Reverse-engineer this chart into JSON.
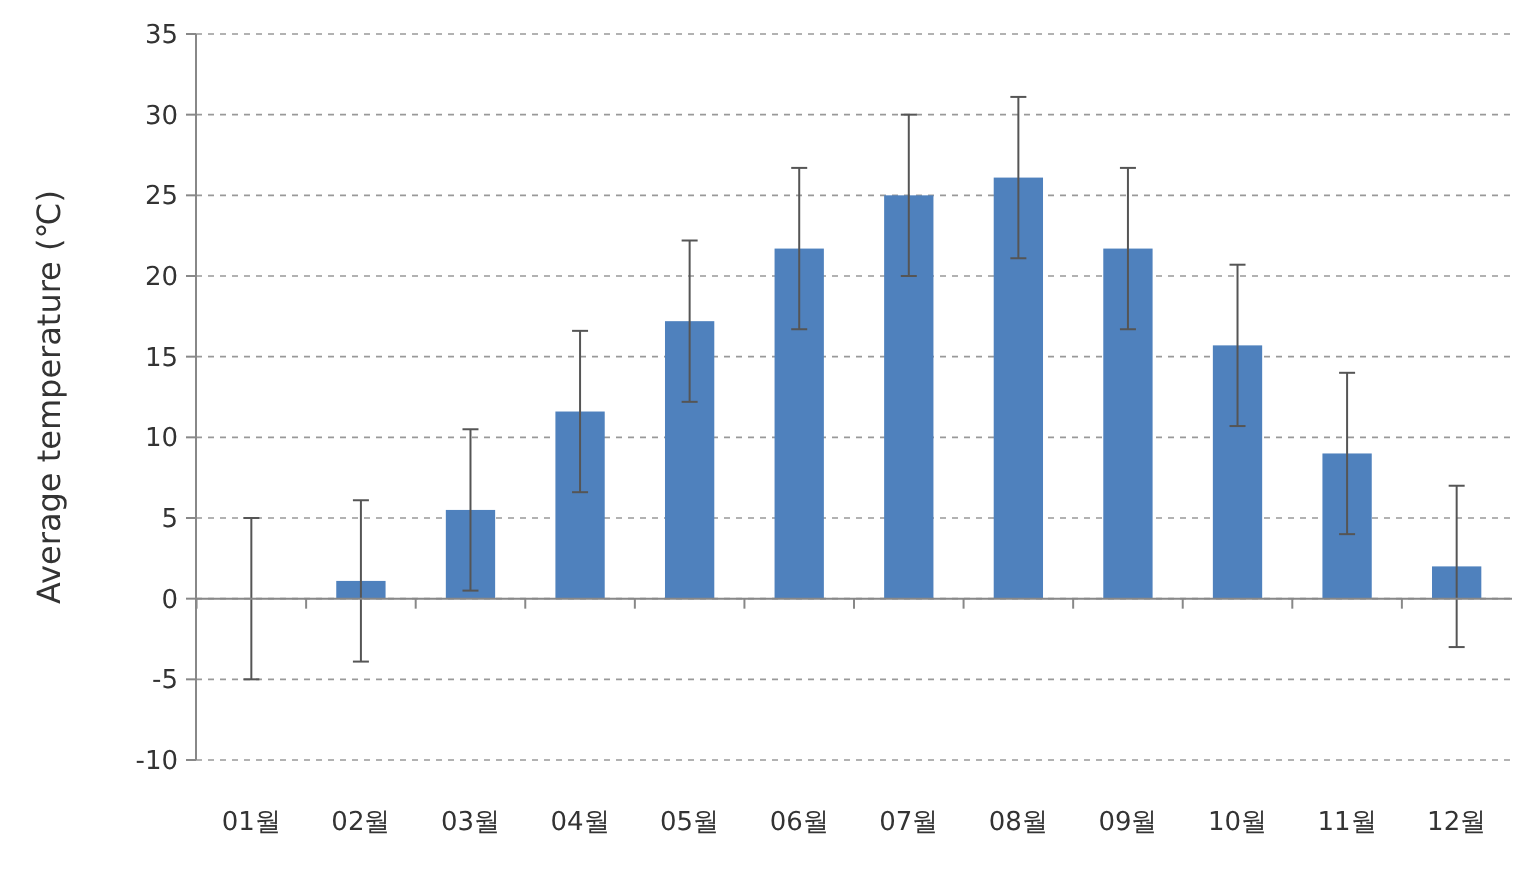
{
  "chart_data": {
    "type": "bar",
    "ylabel": "Average temperature (℃)",
    "categories": [
      "01월",
      "02월",
      "03월",
      "04월",
      "05월",
      "06월",
      "07월",
      "08월",
      "09월",
      "10월",
      "11월",
      "12월"
    ],
    "values": [
      0,
      1.1,
      5.5,
      11.6,
      17.2,
      21.7,
      25,
      26.1,
      21.7,
      15.7,
      9,
      2
    ],
    "errors": [
      5,
      5,
      5,
      5,
      5,
      5,
      5,
      5,
      5,
      5,
      5,
      5
    ],
    "color": "#4f81bd",
    "ylim": [
      -10,
      35
    ],
    "yticks": [
      -10,
      -5,
      0,
      5,
      10,
      15,
      20,
      25,
      30,
      35
    ],
    "grid": "y"
  }
}
